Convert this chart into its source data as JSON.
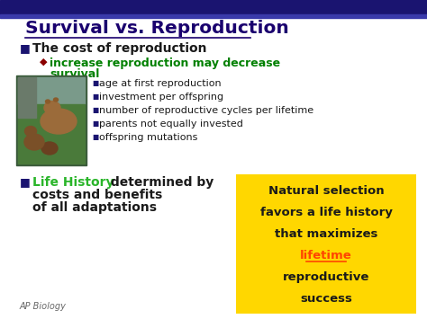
{
  "title": "Survival vs. Reproduction",
  "title_color": "#1a006e",
  "bg_color": "#FFFFFF",
  "top_bar_color": "#1a1470",
  "top_bar2_color": "#3a3aaa",
  "bullet_sq_color": "#1a1470",
  "bullet1_text": "The cost of reproduction",
  "bullet1_color": "#1a1a1a",
  "sub_diamond_color": "#8B0000",
  "sub_text_color": "#008000",
  "items_color": "#1a1a1a",
  "items_bullet_color": "#1a1470",
  "items": [
    "age at first reproduction",
    "investment per offspring",
    "number of reproductive cycles per lifetime",
    "parents not equally invested",
    "offspring mutations"
  ],
  "life_history_color": "#2ab52a",
  "bullet2_rest_color": "#1a1a1a",
  "box_bg": "#FFD700",
  "box_text_color": "#1a1a1a",
  "box_highlight_color": "#FF4500",
  "box_lines": [
    "Natural selection",
    "favors a life history",
    "that maximizes",
    "lifetime",
    "reproductive",
    "success"
  ],
  "watermark": "AP Biology",
  "watermark_color": "#666666",
  "underline_color": "#1a006e"
}
